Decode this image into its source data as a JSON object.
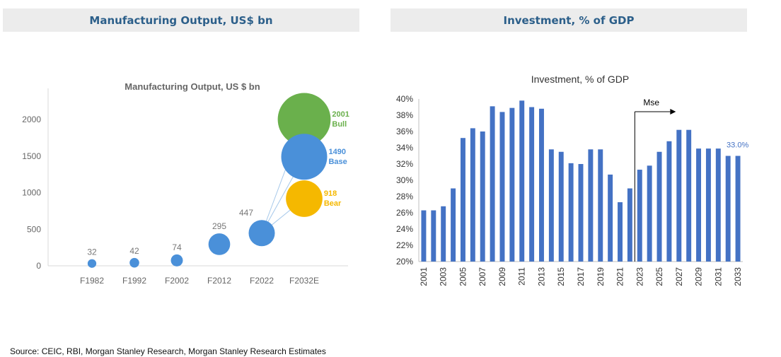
{
  "panels": {
    "left_title": "Manufacturing Output, US$ bn",
    "right_title": "Investment, % of GDP"
  },
  "source": "Source: CEIC, RBI, Morgan Stanley Research, Morgan Stanley Research Estimates",
  "colors": {
    "header_text": "#2c5f8a",
    "bar": "#4472c4",
    "bubble_base": "#4a90d9",
    "bubble_bull": "#6ab04c",
    "bubble_bear": "#f5b800"
  },
  "chart_data": [
    {
      "type": "scatter",
      "title": "Manufacturing Output, US $ bn",
      "categories": [
        "F1982",
        "F1992",
        "F2002",
        "F2012",
        "F2022",
        "F2032E"
      ],
      "ylim": [
        0,
        2000
      ],
      "yticks": [
        0,
        500,
        1000,
        1500,
        2000
      ],
      "points": [
        {
          "x": "F1982",
          "y": 32,
          "label": "32"
        },
        {
          "x": "F1992",
          "y": 42,
          "label": "42"
        },
        {
          "x": "F2002",
          "y": 74,
          "label": "74"
        },
        {
          "x": "F2012",
          "y": 295,
          "label": "295"
        },
        {
          "x": "F2022",
          "y": 447,
          "label": "447"
        }
      ],
      "scenarios": [
        {
          "x": "F2032E",
          "y": 2001,
          "value_label": "2001",
          "name": "Bull",
          "color": "#6ab04c"
        },
        {
          "x": "F2032E",
          "y": 1490,
          "value_label": "1490",
          "name": "Base",
          "color": "#4a90d9"
        },
        {
          "x": "F2032E",
          "y": 918,
          "value_label": "918",
          "name": "Bear",
          "color": "#f5b800"
        }
      ]
    },
    {
      "type": "bar",
      "title": "Investment, % of GDP",
      "x": [
        2001,
        2002,
        2003,
        2004,
        2005,
        2006,
        2007,
        2008,
        2009,
        2010,
        2011,
        2012,
        2013,
        2014,
        2015,
        2016,
        2017,
        2018,
        2019,
        2020,
        2021,
        2022,
        2023,
        2024,
        2025,
        2026,
        2027,
        2028,
        2029,
        2030,
        2031,
        2032,
        2033
      ],
      "values": [
        26.3,
        26.3,
        26.8,
        29.0,
        35.2,
        36.4,
        36.0,
        39.1,
        38.4,
        38.9,
        39.8,
        39.0,
        38.8,
        33.8,
        33.5,
        32.1,
        32.0,
        33.8,
        33.8,
        30.7,
        27.3,
        29.0,
        31.3,
        31.8,
        33.5,
        34.8,
        36.2,
        36.2,
        33.9,
        33.9,
        33.9,
        33.0,
        33.0
      ],
      "ylim": [
        20,
        40
      ],
      "yticks": [
        "20%",
        "22%",
        "24%",
        "26%",
        "28%",
        "30%",
        "32%",
        "34%",
        "36%",
        "38%",
        "40%"
      ],
      "xticks": [
        "2001",
        "2003",
        "2005",
        "2007",
        "2009",
        "2011",
        "2013",
        "2015",
        "2017",
        "2019",
        "2021",
        "2023",
        "2025",
        "2027",
        "2029",
        "2031",
        "2033"
      ],
      "annotation_label": "Mse",
      "last_value_label": "33.0%"
    }
  ]
}
